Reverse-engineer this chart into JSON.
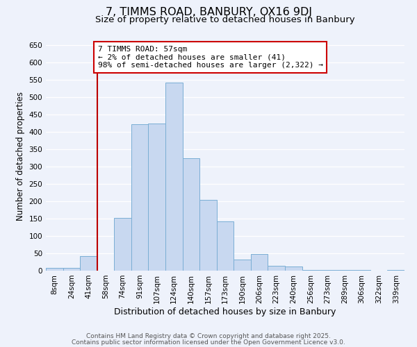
{
  "title": "7, TIMMS ROAD, BANBURY, OX16 9DJ",
  "subtitle": "Size of property relative to detached houses in Banbury",
  "xlabel": "Distribution of detached houses by size in Banbury",
  "ylabel": "Number of detached properties",
  "bin_labels": [
    "8sqm",
    "24sqm",
    "41sqm",
    "58sqm",
    "74sqm",
    "91sqm",
    "107sqm",
    "124sqm",
    "140sqm",
    "157sqm",
    "173sqm",
    "190sqm",
    "206sqm",
    "223sqm",
    "240sqm",
    "256sqm",
    "273sqm",
    "289sqm",
    "306sqm",
    "322sqm",
    "339sqm"
  ],
  "bar_values": [
    8,
    8,
    42,
    0,
    153,
    422,
    425,
    543,
    325,
    205,
    143,
    33,
    48,
    15,
    13,
    3,
    3,
    2,
    2,
    1,
    2
  ],
  "bar_color": "#c8d8f0",
  "bar_edge_color": "#7aaed4",
  "vline_pos": 3.5,
  "vline_color": "#bb0000",
  "annotation_text": "7 TIMMS ROAD: 57sqm\n← 2% of detached houses are smaller (41)\n98% of semi-detached houses are larger (2,322) →",
  "annotation_box_facecolor": "#ffffff",
  "annotation_box_edgecolor": "#cc0000",
  "ylim": [
    0,
    660
  ],
  "yticks": [
    0,
    50,
    100,
    150,
    200,
    250,
    300,
    350,
    400,
    450,
    500,
    550,
    600,
    650
  ],
  "footer1": "Contains HM Land Registry data © Crown copyright and database right 2025.",
  "footer2": "Contains public sector information licensed under the Open Government Licence v3.0.",
  "background_color": "#eef2fb",
  "grid_color": "#ffffff",
  "title_fontsize": 11.5,
  "subtitle_fontsize": 9.5,
  "xlabel_fontsize": 9,
  "ylabel_fontsize": 8.5,
  "tick_fontsize": 7.5,
  "annotation_fontsize": 8,
  "footer_fontsize": 6.5
}
